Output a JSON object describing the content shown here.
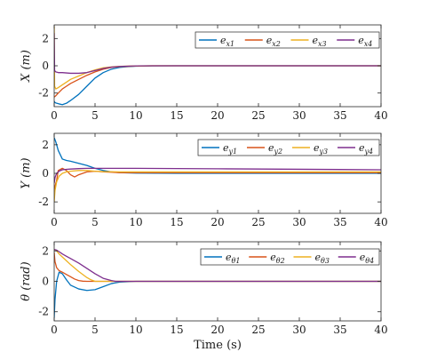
{
  "chart_data": [
    {
      "type": "line",
      "ylabel": "X (m)",
      "ylabel_parts": {
        "var": "X",
        "unit": "(m)"
      },
      "xlim": [
        0,
        40
      ],
      "ylim": [
        -3,
        3
      ],
      "xticks": [
        0,
        5,
        10,
        15,
        20,
        25,
        30,
        35,
        40
      ],
      "yticks": [
        -2,
        0,
        2
      ],
      "show_xtick_labels": true,
      "grid": false,
      "legend_position": "top-right",
      "series": [
        {
          "name": "e_x1",
          "label": {
            "base": "e",
            "sub": "x1"
          },
          "color": "#0072BD",
          "x": [
            0,
            0.1,
            0.3,
            0.6,
            1,
            1.5,
            2,
            3,
            4,
            5,
            6,
            7,
            8,
            9,
            10,
            12,
            15,
            20,
            40
          ],
          "y": [
            -2.6,
            -2.7,
            -2.75,
            -2.8,
            -2.85,
            -2.75,
            -2.55,
            -2.1,
            -1.5,
            -0.9,
            -0.5,
            -0.25,
            -0.12,
            -0.06,
            -0.03,
            -0.01,
            0,
            0,
            0
          ]
        },
        {
          "name": "e_x2",
          "label": {
            "base": "e",
            "sub": "x2"
          },
          "color": "#D95319",
          "x": [
            0,
            0.2,
            0.5,
            1,
            1.5,
            2,
            3,
            4,
            5,
            6,
            7,
            8,
            10,
            12,
            40
          ],
          "y": [
            -2.3,
            -2.2,
            -2.0,
            -1.7,
            -1.5,
            -1.3,
            -1.0,
            -0.7,
            -0.45,
            -0.25,
            -0.12,
            -0.06,
            -0.02,
            0,
            0
          ]
        },
        {
          "name": "e_x3",
          "label": {
            "base": "e",
            "sub": "x3"
          },
          "color": "#EDB120",
          "x": [
            0,
            0.05,
            0.2,
            0.5,
            1,
            1.5,
            2,
            3,
            4,
            5,
            6,
            7,
            8,
            10,
            12,
            40
          ],
          "y": [
            2.9,
            -1.5,
            -1.7,
            -1.6,
            -1.4,
            -1.2,
            -1.0,
            -0.75,
            -0.5,
            -0.3,
            -0.15,
            -0.08,
            -0.04,
            -0.01,
            0,
            0
          ]
        },
        {
          "name": "e_x4",
          "label": {
            "base": "e",
            "sub": "x4"
          },
          "color": "#7E2F8E",
          "x": [
            0,
            0.05,
            0.2,
            0.5,
            1,
            2,
            3,
            4,
            5,
            6,
            7,
            8,
            10,
            12,
            40
          ],
          "y": [
            2.4,
            -0.35,
            -0.45,
            -0.5,
            -0.5,
            -0.55,
            -0.55,
            -0.5,
            -0.35,
            -0.2,
            -0.1,
            -0.05,
            -0.01,
            0,
            0
          ]
        }
      ]
    },
    {
      "type": "line",
      "ylabel": "Y (m)",
      "ylabel_parts": {
        "var": "Y",
        "unit": "(m)"
      },
      "xlim": [
        0,
        40
      ],
      "ylim": [
        -2.8,
        2.8
      ],
      "xticks": [
        0,
        5,
        10,
        15,
        20,
        25,
        30,
        35,
        40
      ],
      "yticks": [
        -2,
        0,
        2
      ],
      "show_xtick_labels": true,
      "grid": false,
      "legend_position": "top-right",
      "series": [
        {
          "name": "e_y1",
          "label": {
            "base": "e",
            "sub": "y1"
          },
          "color": "#0072BD",
          "x": [
            0,
            0.2,
            0.5,
            1,
            1.5,
            2,
            3,
            4,
            5,
            6,
            7,
            8,
            10,
            15,
            40
          ],
          "y": [
            2.5,
            2.2,
            1.6,
            1.0,
            0.9,
            0.85,
            0.7,
            0.55,
            0.35,
            0.2,
            0.1,
            0.05,
            0.02,
            0,
            0
          ]
        },
        {
          "name": "e_y2",
          "label": {
            "base": "e",
            "sub": "y2"
          },
          "color": "#D95319",
          "x": [
            0,
            0.1,
            0.3,
            0.5,
            1,
            1.5,
            2,
            2.5,
            3,
            4,
            5,
            6,
            8,
            10,
            40
          ],
          "y": [
            -1.3,
            -0.9,
            -0.5,
            0.2,
            0.35,
            0.2,
            -0.1,
            -0.25,
            -0.1,
            0.1,
            0.15,
            0.1,
            0.05,
            0.05,
            0.05
          ]
        },
        {
          "name": "e_y3",
          "label": {
            "base": "e",
            "sub": "y3"
          },
          "color": "#EDB120",
          "x": [
            0,
            0.1,
            0.3,
            0.6,
            1,
            1.5,
            2,
            3,
            4,
            5,
            6,
            8,
            10,
            40
          ],
          "y": [
            -2.0,
            -1.2,
            -0.6,
            -0.2,
            0.0,
            0.1,
            0.15,
            0.2,
            0.2,
            0.15,
            0.12,
            0.1,
            0.1,
            0.1
          ]
        },
        {
          "name": "e_y4",
          "label": {
            "base": "e",
            "sub": "y4"
          },
          "color": "#7E2F8E",
          "x": [
            0,
            0.1,
            0.3,
            0.6,
            1,
            1.5,
            2,
            3,
            4,
            5,
            6,
            8,
            10,
            20,
            40
          ],
          "y": [
            -0.7,
            -0.3,
            0.0,
            0.15,
            0.25,
            0.28,
            0.3,
            0.33,
            0.35,
            0.35,
            0.35,
            0.35,
            0.35,
            0.32,
            0.25
          ]
        }
      ]
    },
    {
      "type": "line",
      "ylabel": "θ (rad)",
      "ylabel_parts": {
        "var": "θ",
        "unit": "(rad)"
      },
      "xlim": [
        0,
        40
      ],
      "ylim": [
        -2.6,
        2.6
      ],
      "xticks": [
        0,
        5,
        10,
        15,
        20,
        25,
        30,
        35,
        40
      ],
      "yticks": [
        -2,
        0,
        2
      ],
      "show_xtick_labels": true,
      "xlabel": "Time (s)",
      "grid": false,
      "legend_position": "top-right",
      "series": [
        {
          "name": "e_θ1",
          "label": {
            "base": "e",
            "sub": "θ1"
          },
          "color": "#0072BD",
          "x": [
            0,
            0.1,
            0.3,
            0.6,
            1,
            1.5,
            2,
            3,
            4,
            5,
            6,
            7,
            8,
            10,
            40
          ],
          "y": [
            -2.4,
            -1.2,
            0.0,
            0.6,
            0.5,
            0.1,
            -0.25,
            -0.5,
            -0.6,
            -0.55,
            -0.35,
            -0.15,
            -0.05,
            0,
            0
          ]
        },
        {
          "name": "e_θ2",
          "label": {
            "base": "e",
            "sub": "θ2"
          },
          "color": "#D95319",
          "x": [
            0,
            0.1,
            0.3,
            0.6,
            1,
            1.5,
            2,
            2.5,
            3,
            3.5,
            4,
            40
          ],
          "y": [
            1.9,
            1.3,
            0.9,
            0.7,
            0.6,
            0.45,
            0.3,
            0.15,
            0.05,
            0.01,
            0,
            0
          ]
        },
        {
          "name": "e_θ3",
          "label": {
            "base": "e",
            "sub": "θ3"
          },
          "color": "#EDB120",
          "x": [
            0,
            0.3,
            0.6,
            1,
            1.5,
            2,
            3,
            4,
            4.5,
            5,
            40
          ],
          "y": [
            2.1,
            2.0,
            1.8,
            1.6,
            1.35,
            1.1,
            0.65,
            0.25,
            0.1,
            0,
            0
          ]
        },
        {
          "name": "e_θ4",
          "label": {
            "base": "e",
            "sub": "θ4"
          },
          "color": "#7E2F8E",
          "x": [
            0,
            0.3,
            0.6,
            1,
            1.5,
            2,
            3,
            4,
            5,
            6,
            7,
            7.5,
            40
          ],
          "y": [
            2.1,
            2.05,
            1.95,
            1.8,
            1.65,
            1.5,
            1.2,
            0.85,
            0.5,
            0.2,
            0.05,
            0,
            0
          ]
        }
      ]
    }
  ]
}
